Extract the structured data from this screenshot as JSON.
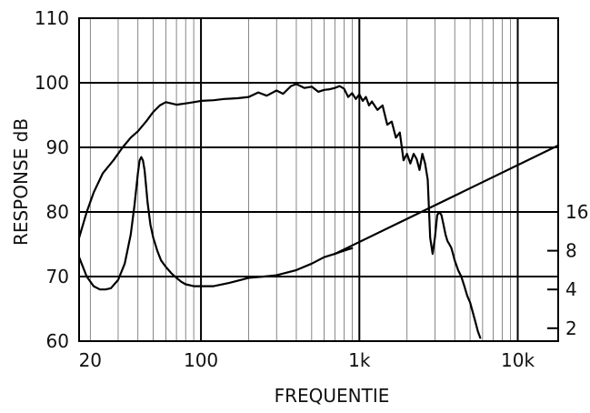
{
  "chart_data": {
    "type": "line",
    "xlabel": "FREQUENTIE",
    "ylabel": "RESPONSE dB",
    "x_scale": "log",
    "xlim": [
      17,
      18000
    ],
    "ylim": [
      60,
      110
    ],
    "x_ticks": [
      {
        "value": 20,
        "label": "20"
      },
      {
        "value": 100,
        "label": "100"
      },
      {
        "value": 1000,
        "label": "1k"
      },
      {
        "value": 10000,
        "label": "10k"
      }
    ],
    "y_ticks": [
      60,
      70,
      80,
      90,
      100,
      110
    ],
    "right_axis": {
      "ticks": [
        {
          "value": 16,
          "label": "16",
          "y": 80
        },
        {
          "value": 8,
          "label": "8",
          "y": 74
        },
        {
          "value": 4,
          "label": "4",
          "y": 68
        },
        {
          "value": 2,
          "label": "2",
          "y": 62
        }
      ]
    },
    "grid": true,
    "series": [
      {
        "x": [
          17,
          19,
          21,
          24,
          28,
          32,
          36,
          40,
          45,
          50,
          55,
          60,
          65,
          70,
          80,
          90,
          100,
          120,
          140,
          170,
          200,
          230,
          260,
          300,
          330,
          370,
          400,
          450,
          500,
          550,
          600,
          650,
          700,
          750,
          800,
          850,
          900,
          950,
          1000,
          1050,
          1100,
          1150,
          1200,
          1300,
          1400,
          1500,
          1600,
          1700,
          1800,
          1900,
          2000,
          2100,
          2200,
          2300,
          2400,
          2500,
          2600,
          2700,
          2800,
          2900,
          3000,
          3100,
          3200,
          3300,
          3400,
          3500,
          3600,
          3700,
          3800,
          3900,
          4000,
          4200,
          4400,
          4600,
          4800,
          5000,
          5200,
          5400,
          5600,
          5800
        ],
        "y": [
          76,
          80,
          83,
          86,
          88,
          90,
          91.5,
          92.5,
          94,
          95.5,
          96.5,
          97,
          96.8,
          96.6,
          96.8,
          97,
          97.2,
          97.3,
          97.5,
          97.6,
          97.8,
          98.5,
          98,
          98.8,
          98.3,
          99.5,
          99.8,
          99.2,
          99.4,
          98.6,
          98.9,
          99,
          99.2,
          99.5,
          99.1,
          97.8,
          98.4,
          97.5,
          98.2,
          97.2,
          97.8,
          96.5,
          97.1,
          95.8,
          96.5,
          93.5,
          94,
          91.5,
          92.3,
          88,
          89,
          87.5,
          89,
          88.2,
          86.5,
          89,
          87.5,
          85,
          76,
          73.5,
          76,
          79.5,
          80,
          79.5,
          78,
          76.5,
          75.5,
          75,
          74.5,
          73.5,
          72.5,
          71,
          70,
          68.5,
          67,
          66,
          64.5,
          63,
          61.5,
          60.5
        ]
      },
      {
        "x": [
          17,
          19,
          21,
          23,
          25,
          27,
          30,
          33,
          36,
          38,
          40,
          41,
          42,
          43,
          44,
          45,
          46,
          48,
          50,
          53,
          56,
          60,
          65,
          70,
          75,
          80,
          90,
          100,
          120,
          150,
          180,
          200,
          250,
          300,
          400,
          500,
          600,
          700,
          800,
          900
        ],
        "y": [
          73,
          70,
          68.5,
          68,
          68,
          68.2,
          69.5,
          72,
          76.5,
          81,
          86,
          88,
          88.5,
          88,
          86.5,
          84,
          81.5,
          78,
          76,
          74,
          72.5,
          71.5,
          70.5,
          69.8,
          69.2,
          68.8,
          68.5,
          68.5,
          68.5,
          69,
          69.5,
          69.8,
          70,
          70.2,
          71,
          72,
          73,
          73.5,
          74,
          74.4
        ]
      },
      {
        "x": [
          700,
          18000
        ],
        "y": [
          73.5,
          90.3
        ]
      }
    ]
  }
}
